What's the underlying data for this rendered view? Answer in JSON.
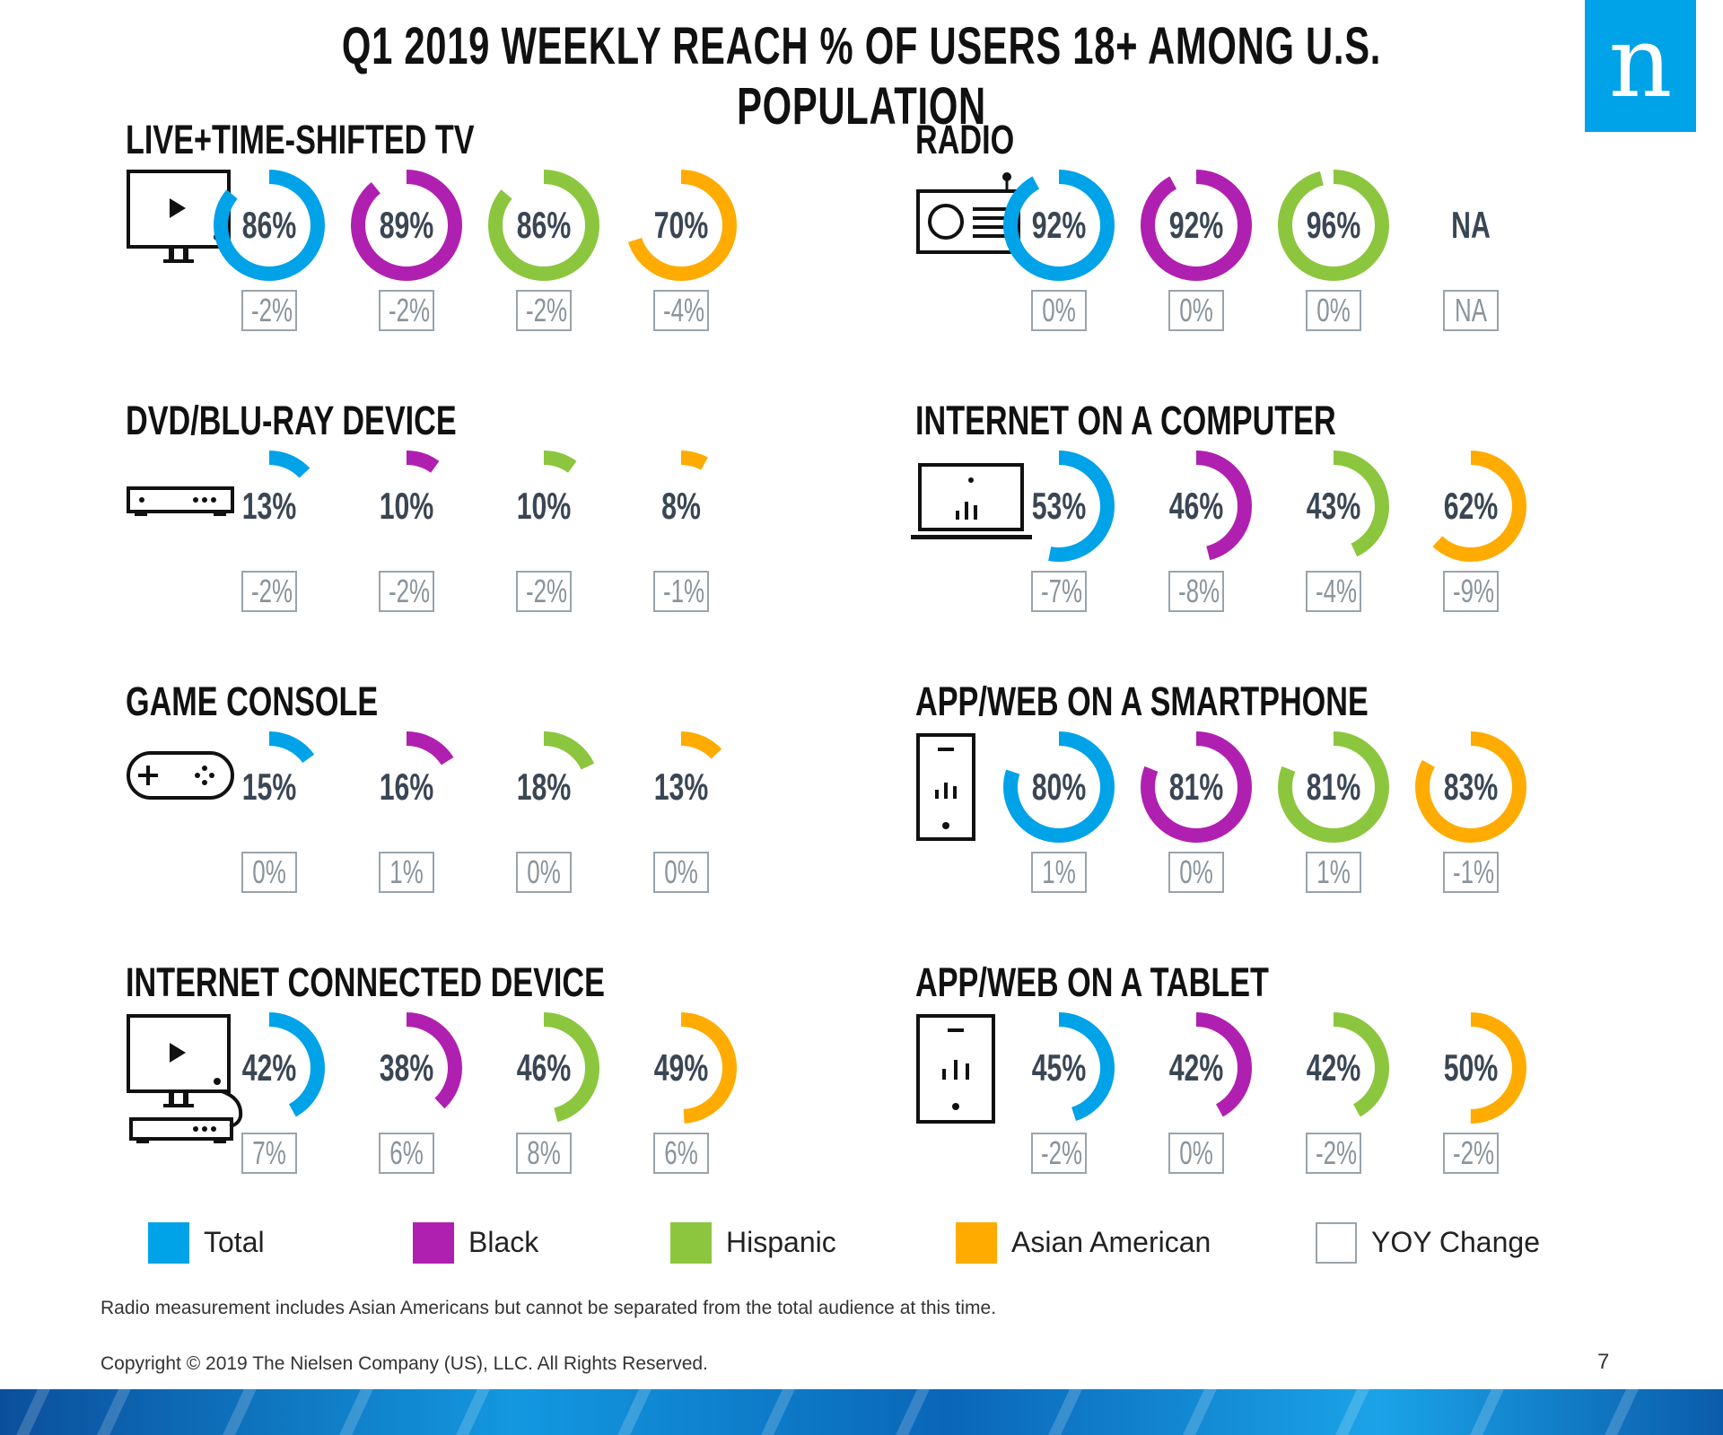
{
  "title": "Q1 2019 WEEKLY REACH % OF USERS 18+ AMONG U.S. POPULATION",
  "logo": "n",
  "colors": {
    "total": "#00a2e8",
    "black": "#b020b0",
    "hispanic": "#8cc63f",
    "asian": "#ffab00",
    "yoy": "#9aa3ab"
  },
  "chart_data": [
    {
      "type": "donut",
      "title": "LIVE+TIME-SHIFTED TV",
      "icon": "tv-icon",
      "categories": [
        "Total",
        "Black",
        "Hispanic",
        "Asian American"
      ],
      "values": [
        86,
        89,
        86,
        70
      ],
      "labels": [
        "86%",
        "89%",
        "86%",
        "70%"
      ],
      "yoy": [
        "-2%",
        "-2%",
        "-2%",
        "-4%"
      ]
    },
    {
      "type": "donut",
      "title": "RADIO",
      "icon": "radio-icon",
      "categories": [
        "Total",
        "Black",
        "Hispanic",
        "Asian American"
      ],
      "values": [
        92,
        92,
        96,
        null
      ],
      "labels": [
        "92%",
        "92%",
        "96%",
        "NA"
      ],
      "yoy": [
        "0%",
        "0%",
        "0%",
        "NA"
      ]
    },
    {
      "type": "donut",
      "title": "DVD/BLU-RAY DEVICE",
      "icon": "dvd-player-icon",
      "categories": [
        "Total",
        "Black",
        "Hispanic",
        "Asian American"
      ],
      "values": [
        13,
        10,
        10,
        8
      ],
      "labels": [
        "13%",
        "10%",
        "10%",
        "8%"
      ],
      "yoy": [
        "-2%",
        "-2%",
        "-2%",
        "-1%"
      ]
    },
    {
      "type": "donut",
      "title": "INTERNET ON A COMPUTER",
      "icon": "laptop-icon",
      "categories": [
        "Total",
        "Black",
        "Hispanic",
        "Asian American"
      ],
      "values": [
        53,
        46,
        43,
        62
      ],
      "labels": [
        "53%",
        "46%",
        "43%",
        "62%"
      ],
      "yoy": [
        "-7%",
        "-8%",
        "-4%",
        "-9%"
      ]
    },
    {
      "type": "donut",
      "title": "GAME CONSOLE",
      "icon": "gamepad-icon",
      "categories": [
        "Total",
        "Black",
        "Hispanic",
        "Asian American"
      ],
      "values": [
        15,
        16,
        18,
        13
      ],
      "labels": [
        "15%",
        "16%",
        "18%",
        "13%"
      ],
      "yoy": [
        "0%",
        "1%",
        "0%",
        "0%"
      ]
    },
    {
      "type": "donut",
      "title": "APP/WEB ON A SMARTPHONE",
      "icon": "smartphone-icon",
      "categories": [
        "Total",
        "Black",
        "Hispanic",
        "Asian American"
      ],
      "values": [
        80,
        81,
        81,
        83
      ],
      "labels": [
        "80%",
        "81%",
        "81%",
        "83%"
      ],
      "yoy": [
        "1%",
        "0%",
        "1%",
        "-1%"
      ]
    },
    {
      "type": "donut",
      "title": "INTERNET CONNECTED DEVICE",
      "icon": "connected-device-icon",
      "categories": [
        "Total",
        "Black",
        "Hispanic",
        "Asian American"
      ],
      "values": [
        42,
        38,
        46,
        49
      ],
      "labels": [
        "42%",
        "38%",
        "46%",
        "49%"
      ],
      "yoy": [
        "7%",
        "6%",
        "8%",
        "6%"
      ]
    },
    {
      "type": "donut",
      "title": "APP/WEB ON A TABLET",
      "icon": "tablet-icon",
      "categories": [
        "Total",
        "Black",
        "Hispanic",
        "Asian American"
      ],
      "values": [
        45,
        42,
        42,
        50
      ],
      "labels": [
        "45%",
        "42%",
        "42%",
        "50%"
      ],
      "yoy": [
        "-2%",
        "0%",
        "-2%",
        "-2%"
      ]
    }
  ],
  "legend": [
    {
      "label": "Total",
      "color": "#00a2e8"
    },
    {
      "label": "Black",
      "color": "#b020b0"
    },
    {
      "label": "Hispanic",
      "color": "#8cc63f"
    },
    {
      "label": "Asian American",
      "color": "#ffab00"
    },
    {
      "label": "YOY Change",
      "color": "#ffffff"
    }
  ],
  "footnote": "Radio measurement includes Asian Americans but cannot be separated from the total audience at this time.",
  "copyright": "Copyright © 2019 The Nielsen Company (US), LLC. All Rights Reserved.",
  "page_number": "7"
}
